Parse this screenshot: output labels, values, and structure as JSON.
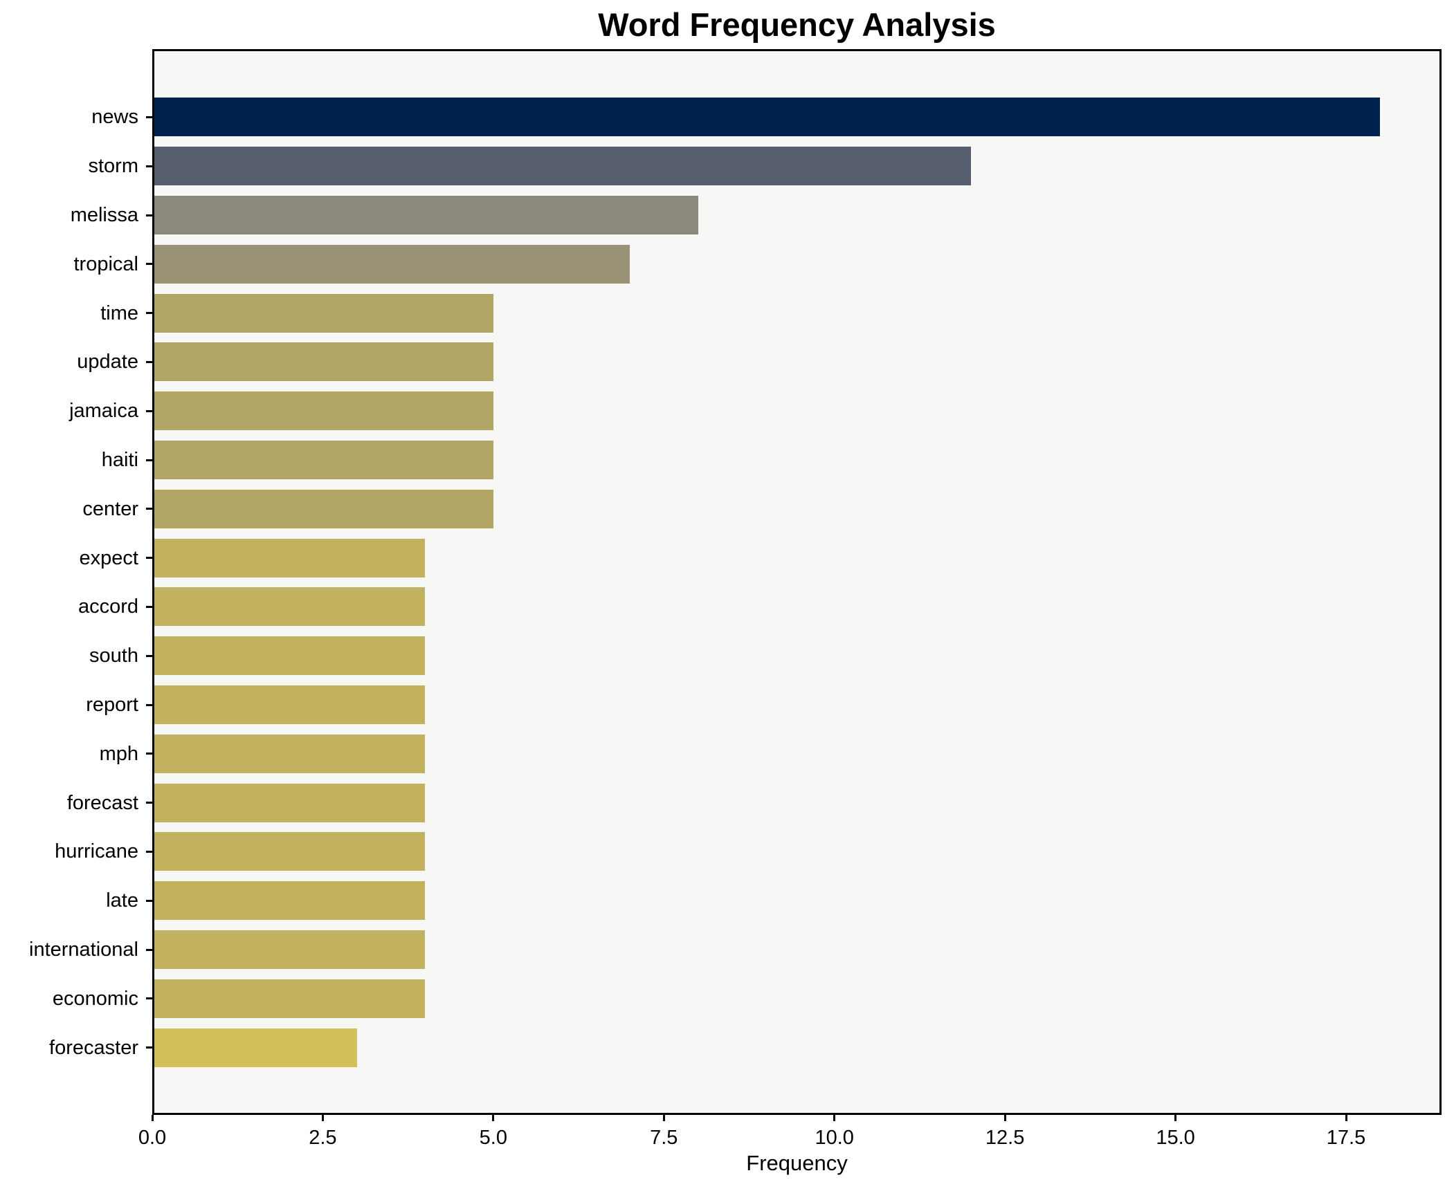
{
  "chart_data": {
    "type": "bar",
    "orientation": "horizontal",
    "title": "Word Frequency Analysis",
    "xlabel": "Frequency",
    "ylabel": "",
    "categories": [
      "news",
      "storm",
      "melissa",
      "tropical",
      "time",
      "update",
      "jamaica",
      "haiti",
      "center",
      "expect",
      "accord",
      "south",
      "report",
      "mph",
      "forecast",
      "hurricane",
      "late",
      "international",
      "economic",
      "forecaster"
    ],
    "values": [
      18,
      12,
      8,
      7,
      5,
      5,
      5,
      5,
      5,
      4,
      4,
      4,
      4,
      4,
      4,
      4,
      4,
      4,
      4,
      3
    ],
    "bar_colors": [
      "#00224e",
      "#565d6d",
      "#8a897c",
      "#999274",
      "#b2a666",
      "#b2a666",
      "#b2a666",
      "#b2a666",
      "#b2a666",
      "#c2b15e",
      "#c2b15e",
      "#c2b15e",
      "#c2b15e",
      "#c2b15e",
      "#c2b15e",
      "#c2b15e",
      "#c2b15e",
      "#c2b15e",
      "#c2b15e",
      "#d4c058"
    ],
    "xticks": [
      0.0,
      2.5,
      5.0,
      7.5,
      10.0,
      12.5,
      15.0,
      17.5
    ],
    "xtick_labels": [
      "0.0",
      "2.5",
      "5.0",
      "7.5",
      "10.0",
      "12.5",
      "15.0",
      "17.5"
    ],
    "xlim": [
      0,
      18.9
    ],
    "grid": false,
    "legend": false,
    "colors": {
      "figure_background": "#ffffff",
      "axes_background": "#f7f7f6",
      "spine": "#000000",
      "text": "#000000"
    }
  }
}
